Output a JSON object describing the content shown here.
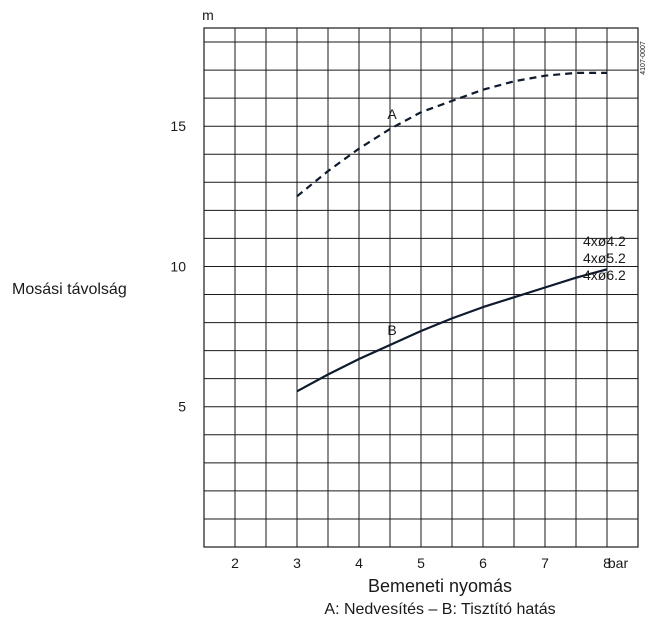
{
  "chart_data": {
    "type": "line",
    "ylabel": "Mosási távolság",
    "yunit": "m",
    "xlabel": "Bemeneti nyomás",
    "xunit": "bar",
    "caption": "A: Nedvesítés – B: Tisztító hatás",
    "figure_code": "4107-0007",
    "xlim": [
      1.5,
      8.5
    ],
    "ylim": [
      0,
      18.5
    ],
    "x_ticks": [
      2,
      3,
      4,
      5,
      6,
      7,
      8
    ],
    "x_tick_labels": [
      "2",
      "3",
      "4",
      "5",
      "6",
      "7",
      "8"
    ],
    "y_ticks": [
      5,
      10,
      15
    ],
    "y_tick_labels": [
      "5",
      "10",
      "15"
    ],
    "grid": true,
    "nozzle_labels": [
      "4xø4.2",
      "4xø5.2",
      "4xø6.2"
    ],
    "series": [
      {
        "name": "A",
        "style": "dashed",
        "color": "#0f1a2e",
        "x": [
          3,
          3.5,
          4,
          4.5,
          5,
          5.5,
          6,
          6.5,
          7,
          7.5,
          8
        ],
        "y": [
          12.5,
          13.4,
          14.2,
          14.9,
          15.5,
          15.9,
          16.3,
          16.6,
          16.8,
          16.9,
          16.9
        ]
      },
      {
        "name": "B",
        "style": "solid",
        "color": "#0f1a2e",
        "x": [
          3,
          3.5,
          4,
          4.5,
          5,
          5.5,
          6,
          6.5,
          7,
          7.5,
          8
        ],
        "y": [
          5.55,
          6.15,
          6.7,
          7.2,
          7.7,
          8.15,
          8.55,
          8.9,
          9.25,
          9.6,
          9.9
        ]
      }
    ]
  }
}
